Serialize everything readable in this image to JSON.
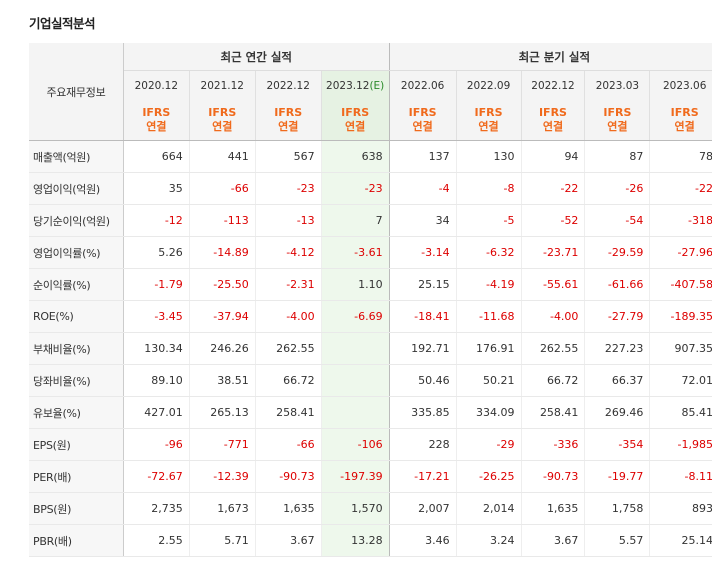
{
  "title": "기업실적분석",
  "header": {
    "corner": "주요재무정보",
    "annual_group": "최근 연간 실적",
    "quarter_group": "최근 분기 실적",
    "annual_periods": [
      "2020.12",
      "2021.12",
      "2022.12",
      "2023.12"
    ],
    "est_mark": "(E)",
    "quarter_periods": [
      "2022.06",
      "2022.09",
      "2022.12",
      "2023.03",
      "2023.06"
    ],
    "ifrs_line1": "IFRS",
    "ifrs_line2": "연결"
  },
  "rows": [
    {
      "label": "매출액(억원)",
      "annual": [
        "664",
        "441",
        "567",
        "638"
      ],
      "quarter": [
        "137",
        "130",
        "94",
        "87",
        "78"
      ]
    },
    {
      "label": "영업이익(억원)",
      "annual": [
        "35",
        "-66",
        "-23",
        "-23"
      ],
      "quarter": [
        "-4",
        "-8",
        "-22",
        "-26",
        "-22"
      ]
    },
    {
      "label": "당기순이익(억원)",
      "annual": [
        "-12",
        "-113",
        "-13",
        "7"
      ],
      "quarter": [
        "34",
        "-5",
        "-52",
        "-54",
        "-318"
      ]
    },
    {
      "label": "영업이익률(%)",
      "annual": [
        "5.26",
        "-14.89",
        "-4.12",
        "-3.61"
      ],
      "quarter": [
        "-3.14",
        "-6.32",
        "-23.71",
        "-29.59",
        "-27.96"
      ]
    },
    {
      "label": "순이익률(%)",
      "annual": [
        "-1.79",
        "-25.50",
        "-2.31",
        "1.10"
      ],
      "quarter": [
        "25.15",
        "-4.19",
        "-55.61",
        "-61.66",
        "-407.58"
      ]
    },
    {
      "label": "ROE(%)",
      "annual": [
        "-3.45",
        "-37.94",
        "-4.00",
        "-6.69"
      ],
      "quarter": [
        "-18.41",
        "-11.68",
        "-4.00",
        "-27.79",
        "-189.35"
      ]
    },
    {
      "label": "부채비율(%)",
      "annual": [
        "130.34",
        "246.26",
        "262.55",
        ""
      ],
      "quarter": [
        "192.71",
        "176.91",
        "262.55",
        "227.23",
        "907.35"
      ]
    },
    {
      "label": "당좌비율(%)",
      "annual": [
        "89.10",
        "38.51",
        "66.72",
        ""
      ],
      "quarter": [
        "50.46",
        "50.21",
        "66.72",
        "66.37",
        "72.01"
      ]
    },
    {
      "label": "유보율(%)",
      "annual": [
        "427.01",
        "265.13",
        "258.41",
        ""
      ],
      "quarter": [
        "335.85",
        "334.09",
        "258.41",
        "269.46",
        "85.41"
      ]
    },
    {
      "label": "EPS(원)",
      "annual": [
        "-96",
        "-771",
        "-66",
        "-106"
      ],
      "quarter": [
        "228",
        "-29",
        "-336",
        "-354",
        "-1,985"
      ]
    },
    {
      "label": "PER(배)",
      "annual": [
        "-72.67",
        "-12.39",
        "-90.73",
        "-197.39"
      ],
      "quarter": [
        "-17.21",
        "-26.25",
        "-90.73",
        "-19.77",
        "-8.11"
      ]
    },
    {
      "label": "BPS(원)",
      "annual": [
        "2,735",
        "1,673",
        "1,635",
        "1,570"
      ],
      "quarter": [
        "2,007",
        "2,014",
        "1,635",
        "1,758",
        "893"
      ]
    },
    {
      "label": "PBR(배)",
      "annual": [
        "2.55",
        "5.71",
        "3.67",
        "13.28"
      ],
      "quarter": [
        "3.46",
        "3.24",
        "3.67",
        "5.57",
        "25.14"
      ]
    }
  ]
}
